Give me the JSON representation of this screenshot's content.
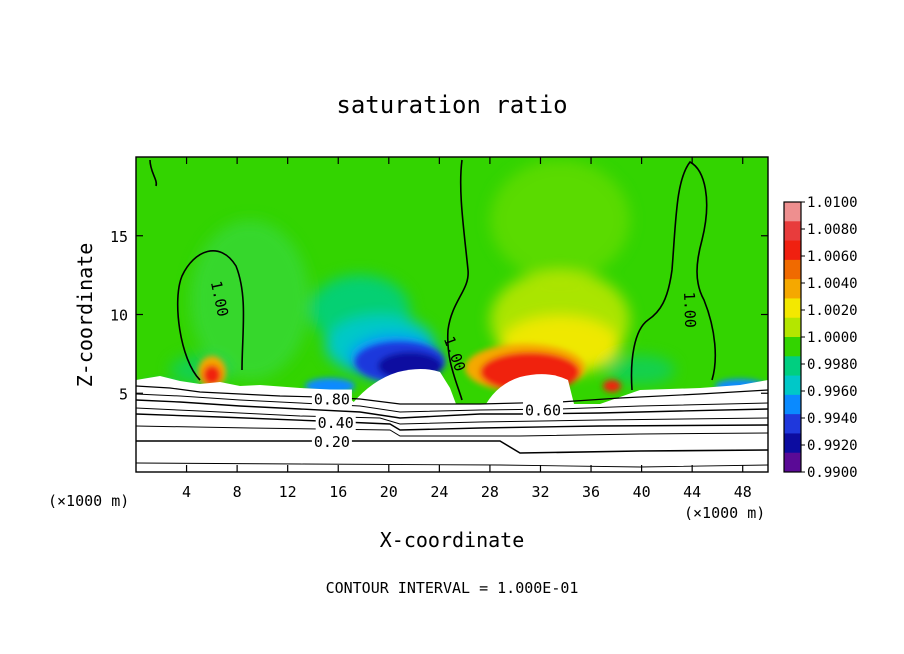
{
  "chart_data": {
    "type": "heatmap",
    "title": "saturation ratio",
    "xlabel": "X-coordinate",
    "ylabel": "Z-coordinate",
    "x_unit": "(×1000 m)",
    "x_ticks": [
      4,
      8,
      12,
      16,
      20,
      24,
      28,
      32,
      36,
      40,
      44,
      48
    ],
    "y_ticks": [
      5,
      10,
      15
    ],
    "xlim": [
      0,
      50
    ],
    "ylim": [
      0,
      20
    ],
    "colorbar": {
      "min": 0.99,
      "max": 1.01,
      "tick_labels": [
        "1.0100",
        "1.0080",
        "1.0060",
        "1.0040",
        "1.0020",
        "1.0000",
        "0.9980",
        "0.9960",
        "0.9940",
        "0.9920",
        "0.9900"
      ],
      "colors": [
        "#ee8f8f",
        "#e83c3c",
        "#f02010",
        "#f06a00",
        "#f5a800",
        "#f3e800",
        "#b4e600",
        "#33d400",
        "#00cf80",
        "#00c8c8",
        "#0a8aff",
        "#1f38dc",
        "#0c0ca0",
        "#5a0a96"
      ]
    },
    "contour_labels": [
      {
        "text": "1.00",
        "x": 6.6,
        "z": 11.0
      },
      {
        "text": "1.00",
        "x": 25.2,
        "z": 7.5
      },
      {
        "text": "1.00",
        "x": 43.8,
        "z": 10.3
      },
      {
        "text": "0.80",
        "x": 15.5,
        "z": 4.6
      },
      {
        "text": "0.60",
        "x": 32.2,
        "z": 3.9
      },
      {
        "text": "0.40",
        "x": 15.8,
        "z": 3.1
      },
      {
        "text": "0.20",
        "x": 15.5,
        "z": 1.9
      }
    ],
    "footer": "CONTOUR INTERVAL = 1.000E-01"
  }
}
